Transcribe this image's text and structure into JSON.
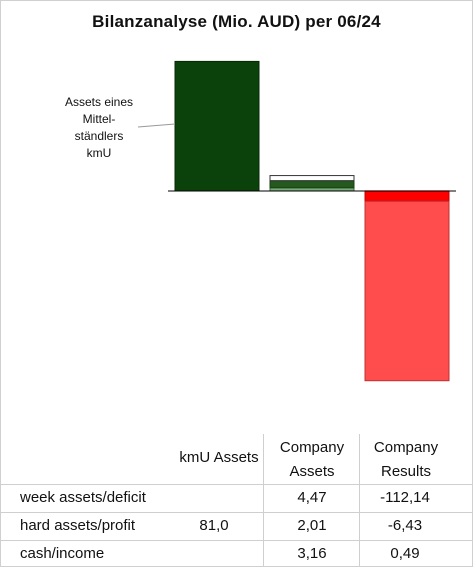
{
  "title": "Bilanzanalyse  (Mio. AUD) per 06/24",
  "annotation": "Assets eines\nMittel-\nständlers\nkmU",
  "chart_data": {
    "type": "bar",
    "title": "Bilanzanalyse  (Mio. AUD) per 06/24",
    "categories": [
      "kmU Assets",
      "Company Assets",
      "Company Results"
    ],
    "series": [
      {
        "name": "cash/income",
        "values": [
          0,
          3.16,
          0.49
        ]
      },
      {
        "name": "hard assets/profit",
        "values": [
          81.0,
          2.01,
          -6.43
        ]
      },
      {
        "name": "week assets/deficit",
        "values": [
          0,
          4.47,
          -112.14
        ]
      }
    ],
    "ylim": [
      -120,
      85
    ],
    "colors": {
      "kmU_hard": "#0b420b",
      "company_cash": "#ffffff",
      "company_hard": "#7aaa7a",
      "company_week": "#245a1e",
      "results_cash": "#ff9a9a",
      "results_profit": "#ff0000",
      "results_deficit": "#ff4d4d"
    },
    "grid": false,
    "legend": "none"
  },
  "table": {
    "headers": [
      {
        "line1": "kmU Assets",
        "line2": ""
      },
      {
        "line1": "Company",
        "line2": "Assets"
      },
      {
        "line1": "Company",
        "line2": "Results"
      }
    ],
    "rows": [
      {
        "label": "week assets/deficit",
        "kmu": "",
        "assets": "4,47",
        "results": "-112,14"
      },
      {
        "label": "hard assets/profit",
        "kmu": "81,0",
        "assets": "2,01",
        "results": "-6,43"
      },
      {
        "label": "cash/income",
        "kmu": "",
        "assets": "3,16",
        "results": "0,49"
      }
    ]
  }
}
